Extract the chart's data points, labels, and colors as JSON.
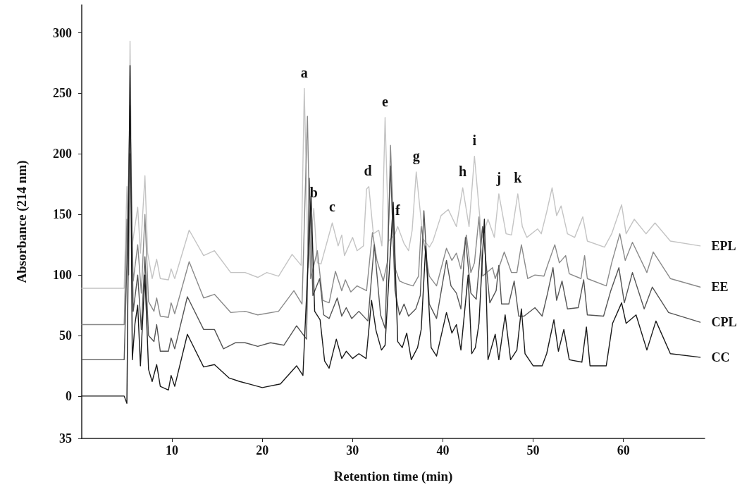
{
  "chart_data": {
    "type": "line",
    "xlabel": "Retention time (min)",
    "ylabel": "Absorbance (214 nm)",
    "xlim": [
      0,
      69
    ],
    "xticks": [
      10,
      20,
      30,
      40,
      50,
      60
    ],
    "ylim": [
      -35,
      323
    ],
    "yticks": [
      {
        "value": -35,
        "label": "35"
      },
      0,
      50,
      100,
      150,
      200,
      250,
      300
    ],
    "grid": false,
    "legend": false,
    "marker": "none",
    "line_style": "solid",
    "annotations": [
      {
        "text": "a",
        "x": 24.65,
        "y": 254
      },
      {
        "text": "b",
        "x": 25.7,
        "y": 155
      },
      {
        "text": "c",
        "x": 27.75,
        "y": 143
      },
      {
        "text": "d",
        "x": 31.7,
        "y": 173
      },
      {
        "text": "e",
        "x": 33.6,
        "y": 230
      },
      {
        "text": "f",
        "x": 35.0,
        "y": 140
      },
      {
        "text": "g",
        "x": 37.05,
        "y": 185
      },
      {
        "text": "h",
        "x": 42.2,
        "y": 172
      },
      {
        "text": "i",
        "x": 43.5,
        "y": 198
      },
      {
        "text": "j",
        "x": 46.2,
        "y": 167
      },
      {
        "text": "k",
        "x": 48.3,
        "y": 167
      }
    ],
    "series": [
      {
        "name": "EPL",
        "color": "#c4c4c4",
        "x": [
          0,
          4.7,
          5.0,
          5.15,
          5.35,
          5.6,
          6.2,
          6.5,
          7.0,
          7.3,
          7.8,
          8.3,
          8.7,
          9.6,
          9.9,
          10.3,
          11.9,
          13.5,
          14.7,
          16.5,
          18.1,
          19.5,
          20.5,
          21.8,
          23.3,
          24.3,
          24.65,
          25.1,
          25.7,
          26.1,
          26.5,
          27.75,
          28.4,
          28.8,
          29.1,
          30.0,
          30.5,
          31.2,
          31.55,
          31.8,
          32.3,
          32.9,
          33.25,
          33.6,
          34.0,
          34.7,
          35.0,
          35.7,
          36.2,
          36.6,
          37.05,
          37.8,
          38.5,
          38.9,
          39.8,
          40.6,
          41.5,
          42.2,
          42.9,
          43.5,
          44.3,
          45.0,
          45.7,
          46.2,
          47.0,
          47.6,
          48.3,
          48.8,
          49.3,
          50.5,
          50.9,
          51.5,
          52.1,
          52.6,
          53.1,
          53.8,
          54.6,
          55.5,
          56.0,
          57.9,
          58.7,
          59.8,
          60.3,
          61.2,
          62.5,
          63.5,
          65.2,
          68.5
        ],
        "values": [
          89,
          89,
          173,
          120,
          293,
          125,
          156,
          118,
          182,
          118,
          97,
          113,
          97,
          96,
          105,
          97,
          137,
          116,
          120,
          102,
          102,
          98,
          102,
          99,
          117,
          108,
          254,
          106,
          155,
          110,
          109,
          143,
          124,
          133,
          116,
          131,
          120,
          124,
          171,
          173,
          134,
          137,
          124,
          230,
          128,
          134,
          140,
          126,
          120,
          137,
          185,
          130,
          123,
          128,
          149,
          154,
          140,
          172,
          140,
          198,
          130,
          146,
          131,
          167,
          134,
          133,
          167,
          140,
          131,
          138,
          134,
          152,
          172,
          149,
          157,
          134,
          131,
          148,
          128,
          123,
          134,
          158,
          134,
          146,
          134,
          143,
          128,
          124
        ]
      },
      {
        "name": "EE",
        "color": "#8a8a8a",
        "x": [
          0,
          4.7,
          5.0,
          5.2,
          5.35,
          5.7,
          6.2,
          6.6,
          7.0,
          7.4,
          8.0,
          8.3,
          8.7,
          9.6,
          9.9,
          10.3,
          11.9,
          13.5,
          14.7,
          16.5,
          18.1,
          19.5,
          21.8,
          23.5,
          24.4,
          25.0,
          25.35,
          26.1,
          26.7,
          27.4,
          28.1,
          28.8,
          29.2,
          29.8,
          30.5,
          31.55,
          32.2,
          32.7,
          33.4,
          33.9,
          34.2,
          34.7,
          35.2,
          35.8,
          36.7,
          37.3,
          37.6,
          38.5,
          39.3,
          40.4,
          41.0,
          41.5,
          42.0,
          42.6,
          43.1,
          43.5,
          44.0,
          44.4,
          45.5,
          45.8,
          46.8,
          47.6,
          48.2,
          48.7,
          49.4,
          50.2,
          51.2,
          51.6,
          52.4,
          52.9,
          53.6,
          54.0,
          55.3,
          55.7,
          56.0,
          58.1,
          58.7,
          59.6,
          60.2,
          61.0,
          62.6,
          63.3,
          65.2,
          68.5
        ],
        "values": [
          59,
          59,
          146,
          100,
          200,
          95,
          125,
          85,
          150,
          78,
          70,
          81,
          66,
          65,
          77,
          68,
          111,
          81,
          84,
          69,
          70,
          67,
          70,
          87,
          76,
          231,
          97,
          120,
          79,
          77,
          103,
          87,
          96,
          86,
          91,
          87,
          135,
          112,
          95,
          112,
          207,
          106,
          95,
          93,
          91,
          99,
          140,
          99,
          91,
          122,
          112,
          118,
          105,
          133,
          102,
          110,
          148,
          99,
          106,
          97,
          119,
          102,
          102,
          125,
          97,
          100,
          99,
          108,
          125,
          110,
          116,
          101,
          97,
          116,
          97,
          91,
          110,
          134,
          112,
          127,
          102,
          119,
          97,
          90
        ]
      },
      {
        "name": "CPL",
        "color": "#555555",
        "x": [
          0,
          4.7,
          5.0,
          5.35,
          5.7,
          6.2,
          6.6,
          7.0,
          7.4,
          8.0,
          8.3,
          8.7,
          9.6,
          9.9,
          10.3,
          11.7,
          13.5,
          14.7,
          15.7,
          17.0,
          18.1,
          19.5,
          20.9,
          22.4,
          23.8,
          24.9,
          25.2,
          25.6,
          26.35,
          26.8,
          27.4,
          28.3,
          28.8,
          29.3,
          29.9,
          30.7,
          31.7,
          32.4,
          33.1,
          33.6,
          34.2,
          34.7,
          35.2,
          35.7,
          36.2,
          37.0,
          37.5,
          37.9,
          38.5,
          39.3,
          40.4,
          40.9,
          41.5,
          42.0,
          42.5,
          43.1,
          43.7,
          44.4,
          45.2,
          45.9,
          46.2,
          46.5,
          47.3,
          47.9,
          48.4,
          49.0,
          50.2,
          51.0,
          51.6,
          52.2,
          52.6,
          53.2,
          53.8,
          55.0,
          55.6,
          56.0,
          57.8,
          58.6,
          59.5,
          60.1,
          61.0,
          62.3,
          63.2,
          65.0,
          68.5
        ],
        "values": [
          30,
          30,
          110,
          240,
          70,
          100,
          55,
          115,
          50,
          45,
          59,
          37,
          37,
          48,
          39,
          82,
          55,
          55,
          39,
          44,
          44,
          41,
          44,
          42,
          58,
          47,
          180,
          83,
          97,
          67,
          64,
          81,
          66,
          73,
          64,
          70,
          62,
          125,
          67,
          56,
          190,
          87,
          67,
          76,
          66,
          72,
          83,
          153,
          76,
          64,
          112,
          91,
          85,
          72,
          131,
          85,
          80,
          140,
          77,
          87,
          108,
          76,
          76,
          95,
          66,
          66,
          73,
          66,
          85,
          106,
          79,
          95,
          72,
          73,
          96,
          67,
          66,
          87,
          106,
          77,
          102,
          72,
          90,
          69,
          61
        ]
      },
      {
        "name": "CC",
        "color": "#1a1a1a",
        "x": [
          0,
          4.7,
          5.0,
          5.35,
          5.6,
          5.9,
          6.2,
          6.5,
          7.0,
          7.4,
          7.8,
          8.3,
          8.7,
          9.6,
          9.9,
          10.3,
          11.7,
          13.5,
          14.7,
          16.3,
          17.5,
          18.5,
          20.0,
          22.0,
          23.8,
          24.5,
          25.4,
          25.8,
          26.4,
          26.9,
          27.4,
          28.2,
          28.8,
          29.3,
          30.0,
          30.7,
          31.5,
          32.1,
          32.6,
          33.2,
          33.6,
          34.5,
          35.0,
          35.5,
          36.0,
          36.5,
          37.2,
          37.6,
          38.1,
          38.7,
          39.3,
          40.4,
          41.0,
          41.5,
          42.0,
          42.8,
          43.2,
          43.6,
          44.0,
          44.6,
          45.0,
          45.8,
          46.2,
          46.9,
          47.5,
          48.2,
          48.7,
          49.1,
          50.0,
          51.0,
          51.5,
          52.3,
          52.8,
          53.4,
          54.0,
          55.4,
          55.9,
          56.3,
          58.1,
          58.8,
          59.8,
          60.3,
          61.4,
          62.6,
          63.6,
          65.2,
          68.5
        ],
        "values": [
          0,
          0,
          -6,
          273,
          30,
          60,
          75,
          25,
          100,
          22,
          12,
          26,
          8,
          5,
          17,
          8,
          51,
          24,
          26,
          15,
          12,
          10,
          7,
          10,
          25,
          17,
          165,
          70,
          63,
          29,
          23,
          47,
          31,
          37,
          31,
          35,
          31,
          79,
          54,
          38,
          42,
          160,
          45,
          40,
          52,
          30,
          40,
          55,
          124,
          40,
          33,
          69,
          52,
          59,
          38,
          100,
          35,
          40,
          60,
          146,
          30,
          51,
          30,
          67,
          30,
          38,
          72,
          35,
          25,
          25,
          35,
          63,
          37,
          55,
          30,
          28,
          57,
          25,
          25,
          60,
          77,
          60,
          67,
          38,
          62,
          35,
          32
        ]
      }
    ]
  }
}
